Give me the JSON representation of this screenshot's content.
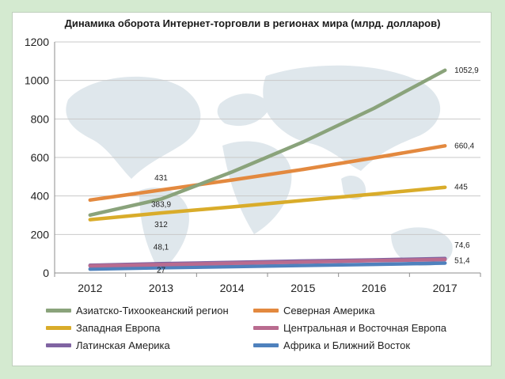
{
  "chart_data": {
    "type": "line",
    "title": "Динамика оборота Интернет-торговли в регионах мира (млрд. долларов)",
    "xlabel": "",
    "ylabel": "",
    "categories": [
      "2012",
      "2013",
      "2014",
      "2015",
      "2016",
      "2017"
    ],
    "ylim": [
      0,
      1200
    ],
    "yticks": [
      "0",
      "200",
      "400",
      "600",
      "800",
      "1000",
      "1200"
    ],
    "grid": true,
    "legend_position": "bottom",
    "series": [
      {
        "name": "Азиатско-Тихоокеанский регион",
        "color": "#8aa37b",
        "values": [
          301,
          383.9,
          525,
          680,
          855,
          1052.9
        ],
        "labels": [
          null,
          "383,9",
          null,
          null,
          null,
          "1052,9"
        ]
      },
      {
        "name": "Северная Америка",
        "color": "#e3893f",
        "values": [
          379,
          431,
          483,
          538,
          598,
          660.4
        ],
        "labels": [
          null,
          "431",
          null,
          null,
          null,
          "660,4"
        ]
      },
      {
        "name": "Западная Европа",
        "color": "#d9ac2a",
        "values": [
          277,
          312,
          343,
          377,
          410,
          445
        ],
        "labels": [
          null,
          "312",
          null,
          null,
          null,
          "445"
        ]
      },
      {
        "name": "Центральная и Восточная Европа",
        "color": "#b96b8f",
        "values": [
          37,
          43,
          50,
          57,
          64,
          70
        ],
        "labels": [
          null,
          null,
          null,
          null,
          null,
          null
        ]
      },
      {
        "name": "Латинская Америка",
        "color": "#8064a2",
        "values": [
          40,
          48.1,
          55,
          62,
          68,
          74.6
        ],
        "labels": [
          null,
          "48,1",
          null,
          null,
          null,
          "74,6"
        ]
      },
      {
        "name": "Африка и Ближний Восток",
        "color": "#4f81bd",
        "values": [
          20,
          27,
          33,
          39,
          45,
          51.4
        ],
        "labels": [
          null,
          "27",
          null,
          null,
          null,
          "51,4"
        ]
      }
    ]
  }
}
